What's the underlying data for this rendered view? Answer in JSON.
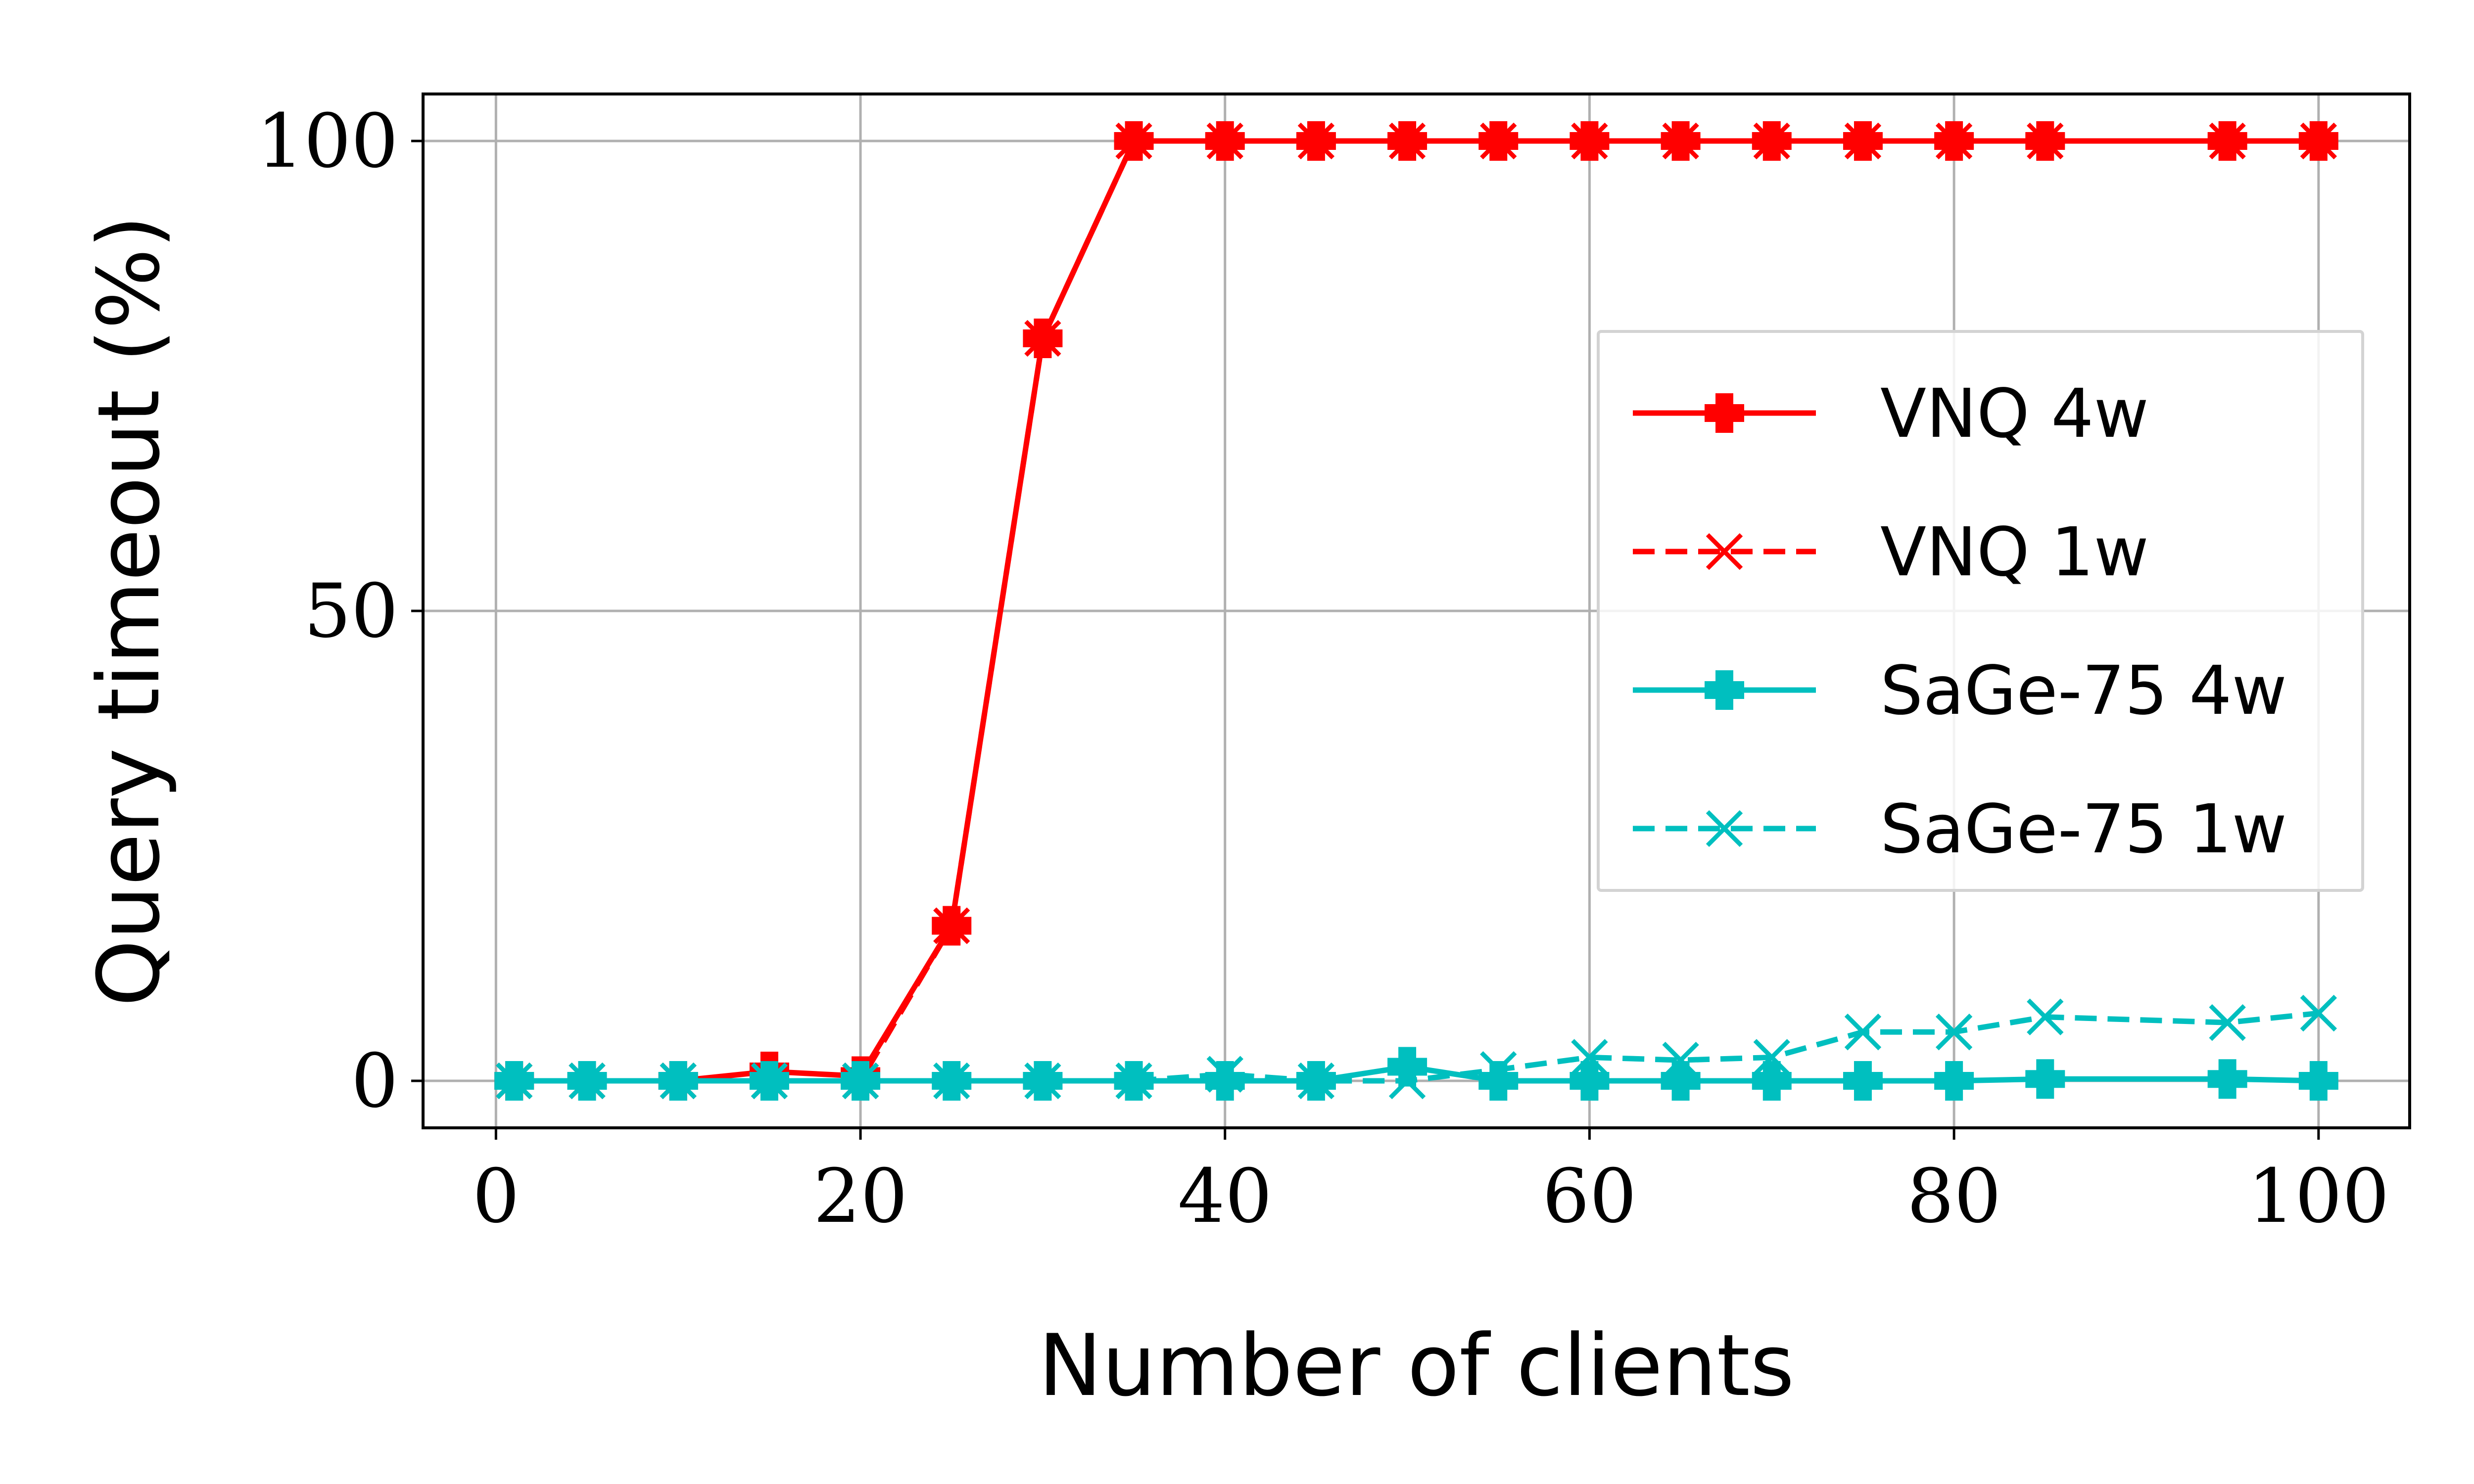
{
  "chart_data": {
    "type": "line",
    "xlabel": "Number of clients",
    "ylabel": "Query timeout (%)",
    "xlim": [
      -4,
      105
    ],
    "ylim": [
      -5,
      105
    ],
    "xticks": [
      0,
      20,
      40,
      60,
      80,
      100
    ],
    "yticks": [
      0,
      50,
      100
    ],
    "grid": true,
    "legend_position": "right",
    "series": [
      {
        "name": "VNQ 4w",
        "color": "#ff0000",
        "linestyle": "solid",
        "marker": "plus-filled",
        "x": [
          1,
          5,
          10,
          15,
          20,
          25,
          30,
          35,
          40,
          45,
          50,
          55,
          60,
          65,
          70,
          75,
          80,
          85,
          95,
          100
        ],
        "y": [
          0,
          0,
          0,
          1,
          0.5,
          16.5,
          79,
          100,
          100,
          100,
          100,
          100,
          100,
          100,
          100,
          100,
          100,
          100,
          100,
          100
        ]
      },
      {
        "name": "VNQ 1w",
        "color": "#ff0000",
        "linestyle": "dashed",
        "marker": "x",
        "x": [
          1,
          5,
          10,
          15,
          20,
          25,
          30,
          35,
          40,
          45,
          50,
          55,
          60,
          65,
          70,
          75,
          80,
          85,
          95,
          100
        ],
        "y": [
          0,
          0,
          0,
          0,
          0,
          16.5,
          79,
          100,
          100,
          100,
          100,
          100,
          100,
          100,
          100,
          100,
          100,
          100,
          100,
          100
        ]
      },
      {
        "name": "SaGe-75 4w",
        "color": "#00bfbf",
        "linestyle": "solid",
        "marker": "plus-filled",
        "x": [
          1,
          5,
          10,
          15,
          20,
          25,
          30,
          35,
          40,
          45,
          50,
          55,
          60,
          65,
          70,
          75,
          80,
          85,
          95,
          100
        ],
        "y": [
          0,
          0,
          0,
          0,
          0,
          0,
          0,
          0,
          0,
          0,
          1.5,
          0,
          0,
          0,
          0,
          0,
          0,
          0.2,
          0.2,
          0
        ]
      },
      {
        "name": "SaGe-75 1w",
        "color": "#00bfbf",
        "linestyle": "dashed",
        "marker": "x",
        "x": [
          1,
          5,
          10,
          15,
          20,
          25,
          30,
          35,
          40,
          45,
          50,
          55,
          60,
          65,
          70,
          75,
          80,
          85,
          95,
          100
        ],
        "y": [
          0,
          0,
          0,
          0,
          0,
          0,
          0,
          0,
          0.7,
          0,
          0,
          1.2,
          2.5,
          2.2,
          2.5,
          5.2,
          5.2,
          6.8,
          6.2,
          7.2
        ]
      }
    ]
  }
}
